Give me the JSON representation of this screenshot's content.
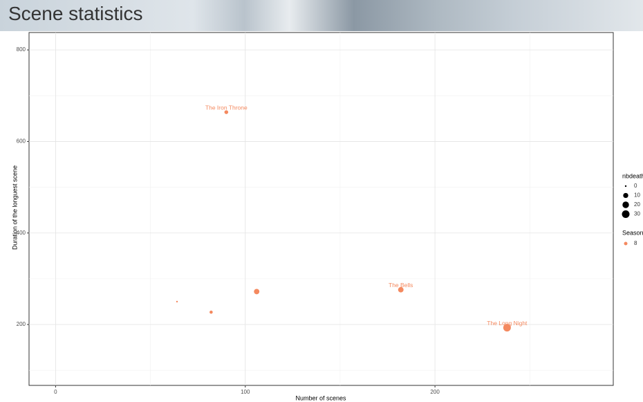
{
  "header": {
    "title": "Scene statistics"
  },
  "chart_data": {
    "type": "scatter",
    "x_label": "Number of scenes",
    "y_label": "Duration of the longuest scene",
    "xlim": [
      -14,
      294
    ],
    "ylim": [
      67,
      838
    ],
    "xticks": [
      0,
      100,
      200
    ],
    "yticks": [
      200,
      400,
      600,
      800
    ],
    "grid": true,
    "size_legend": {
      "title": "nbdeath",
      "values": [
        0,
        10,
        20,
        30
      ]
    },
    "color_legend_title": "Season",
    "series": [
      {
        "name": "8",
        "color": "#f4895f",
        "x": [
          90,
          64,
          82,
          106,
          182,
          238
        ],
        "y": [
          664,
          250,
          227,
          272,
          276,
          193
        ],
        "size": [
          4,
          0,
          2,
          12,
          12,
          30
        ],
        "labels": [
          "The Iron Throne",
          null,
          null,
          null,
          "The Bells",
          "The Long Night"
        ]
      }
    ]
  }
}
